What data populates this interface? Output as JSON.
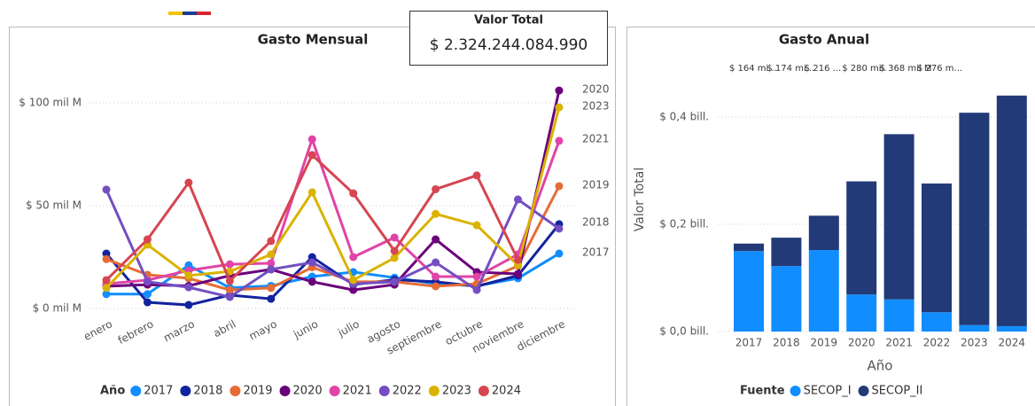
{
  "card": {
    "title": "Valor Total",
    "value": "$ 2.324.244.084.990"
  },
  "chart_data": [
    {
      "type": "line",
      "title": "Gasto Mensual",
      "categories": [
        "enero",
        "febrero",
        "marzo",
        "abril",
        "mayo",
        "junio",
        "julio",
        "agosto",
        "septiembre",
        "octubre",
        "noviembre",
        "diciembre"
      ],
      "ylim": [
        -2,
        110
      ],
      "yticks": [
        {
          "value": 0,
          "label": "$ 0 mil M"
        },
        {
          "value": 50,
          "label": "$ 50 mil M"
        },
        {
          "value": 100,
          "label": "$ 100 mil M"
        }
      ],
      "grid": true,
      "legend_title": "Año",
      "legend": "bottom",
      "series": [
        {
          "name": "2017",
          "color": "#118dff",
          "values": [
            7,
            7,
            21,
            10,
            11,
            15.5,
            17.7,
            15,
            12,
            11,
            14.7,
            26.7
          ]
        },
        {
          "name": "2018",
          "color": "#12239e",
          "values": [
            26.7,
            3,
            1.7,
            6.5,
            4.7,
            25,
            11.6,
            14,
            13,
            10.8,
            16,
            41
          ]
        },
        {
          "name": "2019",
          "color": "#e66c37",
          "values": [
            24,
            16.4,
            14.7,
            9,
            10,
            20,
            13,
            13,
            10.8,
            12,
            20.7,
            59.5
          ]
        },
        {
          "name": "2020",
          "color": "#6b007b",
          "values": [
            10.8,
            11.6,
            11,
            16,
            19,
            13,
            9,
            11.6,
            33.6,
            17.7,
            16.8,
            106
          ]
        },
        {
          "name": "2021",
          "color": "#e044a7",
          "values": [
            12,
            13.8,
            18.5,
            21.5,
            22,
            82.3,
            25,
            34.5,
            15.5,
            15.5,
            26.3,
            81.5
          ]
        },
        {
          "name": "2022",
          "color": "#744ec2",
          "values": [
            57.8,
            13,
            10.3,
            5.6,
            19,
            22.4,
            12,
            13,
            22.4,
            9,
            53,
            38.8
          ]
        },
        {
          "name": "2023",
          "color": "#d9b300",
          "values": [
            10,
            31,
            16,
            18,
            26.3,
            56.5,
            13.8,
            24.6,
            46,
            40.5,
            21,
            97.8
          ]
        },
        {
          "name": "2024",
          "color": "#d64550",
          "values": [
            13.8,
            33.6,
            61.2,
            13.4,
            32.8,
            74.6,
            56,
            28,
            58,
            64.7,
            23.7,
            null
          ]
        }
      ]
    },
    {
      "type": "bar",
      "title": "Gasto Anual",
      "stacked": true,
      "ylabel": "Valor Total",
      "xlabel": "Año",
      "categories": [
        "2017",
        "2018",
        "2019",
        "2020",
        "2021",
        "2022",
        "2023",
        "2024"
      ],
      "ylim": [
        0,
        0.46
      ],
      "yticks": [
        {
          "value": 0,
          "label": "$ 0,0 bill."
        },
        {
          "value": 0.2,
          "label": "$ 0,2 bill."
        },
        {
          "value": 0.4,
          "label": "$ 0,4 bill."
        }
      ],
      "grid": true,
      "legend_title": "Fuente",
      "legend": "bottom",
      "total_labels": [
        "$ 164 mi...",
        "$ 174 mi...",
        "$ 216 ...",
        "$ 280 mil.",
        "$ 368 mil M",
        "$ 276 m..."
      ],
      "series": [
        {
          "name": "SECOP_I",
          "color": "#118dff",
          "values": [
            0.15,
            0.122,
            0.152,
            0.069,
            0.06,
            0.036,
            0.012,
            0.01
          ]
        },
        {
          "name": "SECOP_II",
          "color": "#223a78",
          "values": [
            0.014,
            0.053,
            0.064,
            0.211,
            0.308,
            0.24,
            0.396,
            0.43
          ]
        }
      ]
    }
  ]
}
